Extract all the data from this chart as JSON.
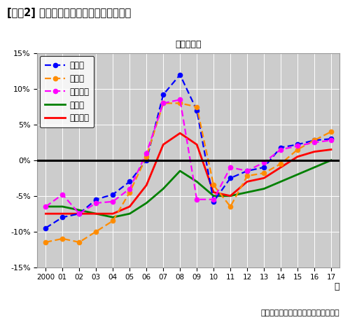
{
  "years": [
    2000,
    2001,
    2002,
    2003,
    2004,
    2005,
    2006,
    2007,
    2008,
    2009,
    2010,
    2011,
    2012,
    2013,
    2014,
    2015,
    2016,
    2017
  ],
  "tokyo": [
    -9.5,
    -8.0,
    -7.5,
    -5.5,
    -4.8,
    -3.0,
    0.0,
    9.2,
    12.0,
    7.0,
    -5.8,
    -2.5,
    -1.5,
    -1.0,
    1.8,
    2.2,
    2.8,
    3.0
  ],
  "osaka": [
    -11.5,
    -11.0,
    -11.5,
    -10.0,
    -8.5,
    -4.5,
    0.5,
    8.0,
    8.0,
    7.5,
    -3.5,
    -6.5,
    -2.2,
    -1.8,
    -0.5,
    1.5,
    2.8,
    4.0
  ],
  "nagoya": [
    -6.5,
    -4.8,
    -7.5,
    -6.0,
    -5.8,
    -4.0,
    1.0,
    8.0,
    8.5,
    -5.5,
    -5.5,
    -1.0,
    -1.5,
    -0.3,
    1.5,
    2.0,
    2.5,
    2.8
  ],
  "chihou": [
    -6.5,
    -6.5,
    -7.0,
    -7.5,
    -8.0,
    -7.5,
    -6.0,
    -4.0,
    -1.5,
    -3.0,
    -5.0,
    -5.0,
    -4.5,
    -4.0,
    -3.0,
    -2.0,
    -1.0,
    0.0
  ],
  "national": [
    -7.5,
    -7.5,
    -7.5,
    -7.5,
    -7.5,
    -6.5,
    -3.5,
    2.2,
    3.8,
    2.2,
    -4.5,
    -5.0,
    -3.0,
    -2.5,
    -1.0,
    0.5,
    1.2,
    1.5
  ],
  "title": "[図表2] 圏域別の対前年地価変動率の推移",
  "subtitle": "（商業地）",
  "xlabel": "年",
  "source": "データ出所：国土交通省（地価公示）",
  "series_labels": [
    "東京圏",
    "大阪圏",
    "名古屋圏",
    "地方圏",
    "全国平均"
  ],
  "colors": [
    "#0000FF",
    "#FF8C00",
    "#FF00FF",
    "#008000",
    "#FF0000"
  ],
  "ylim": [
    -15,
    15
  ],
  "yticks": [
    -15,
    -10,
    -5,
    0,
    5,
    10,
    15
  ],
  "bg_color": "#CCCCCC",
  "fig_bg": "#FFFFFF"
}
